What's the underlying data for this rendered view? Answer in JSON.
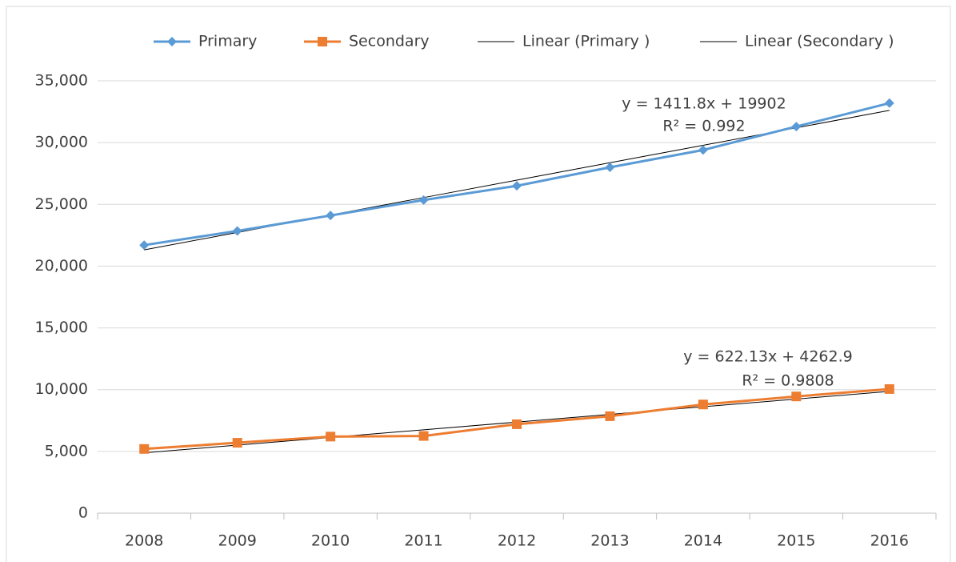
{
  "chart_data": {
    "type": "line",
    "categories": [
      "2008",
      "2009",
      "2010",
      "2011",
      "2012",
      "2013",
      "2014",
      "2015",
      "2016"
    ],
    "series": [
      {
        "name": "Primary",
        "color": "#5b9bd5",
        "marker": "diamond",
        "values": [
          21700,
          22850,
          24100,
          25350,
          26500,
          28000,
          29400,
          31300,
          33200
        ]
      },
      {
        "name": "Secondary",
        "color": "#ed7d31",
        "marker": "square",
        "values": [
          5200,
          5700,
          6200,
          6250,
          7200,
          7850,
          8800,
          9450,
          10050
        ]
      },
      {
        "name": "Linear (Primary )",
        "color": "#000000",
        "values": [
          21313.8,
          22725.6,
          24137.4,
          25549.2,
          26961,
          28372.8,
          29784.6,
          31196.4,
          32608.2
        ]
      },
      {
        "name": "Linear (Secondary )",
        "color": "#000000",
        "values": [
          4885.03,
          5507.16,
          6129.29,
          6751.42,
          7373.55,
          7995.68,
          8617.81,
          9239.94,
          9862.07
        ]
      }
    ],
    "annotations": [
      "y = 1411.8x + 19902",
      "R² = 0.992",
      "y = 622.13x + 4262.9",
      "R² = 0.9808"
    ],
    "ylim": [
      0,
      35000
    ],
    "yticks": [
      0,
      {
        "value": 5000,
        "label": "5,000"
      },
      {
        "value": 10000,
        "label": "10,000"
      },
      {
        "value": 15000,
        "label": "15,000"
      },
      {
        "value": 20000,
        "label": "20,000"
      },
      {
        "value": 25000,
        "label": "25,000"
      },
      {
        "value": 30000,
        "label": "30,000"
      },
      {
        "value": 35000,
        "label": "35,000"
      }
    ],
    "grid": true,
    "legend": "top"
  }
}
